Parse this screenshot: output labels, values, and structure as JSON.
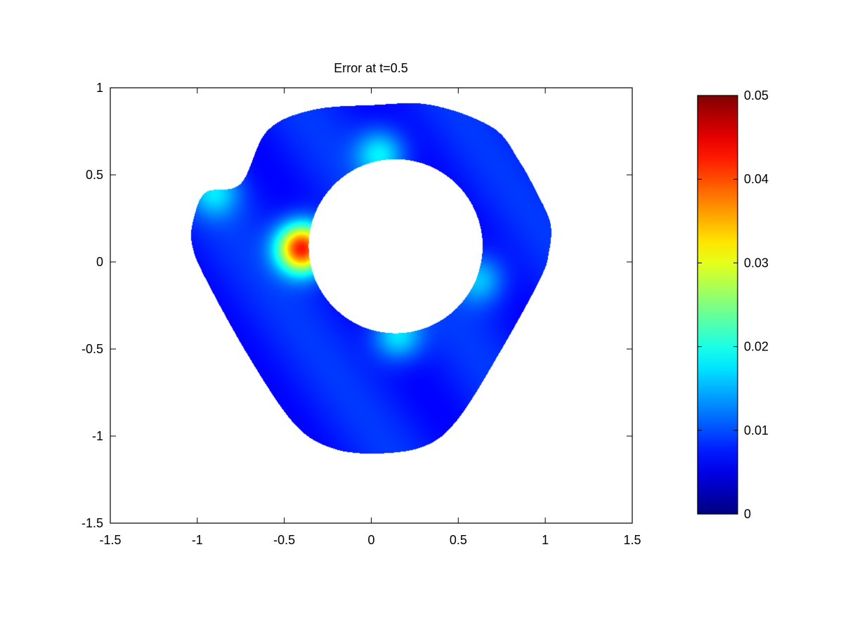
{
  "chart_data": {
    "type": "heatmap",
    "title": "Error at t=0.5",
    "xlabel": "",
    "ylabel": "",
    "xlim": [
      -1.5,
      1.5
    ],
    "ylim": [
      -1.5,
      1
    ],
    "x_ticks": [
      -1.5,
      -1,
      -0.5,
      0,
      0.5,
      1,
      1.5
    ],
    "x_tick_labels": [
      "-1.5",
      "-1",
      "-0.5",
      "0",
      "0.5",
      "1",
      "1.5"
    ],
    "y_ticks": [
      1,
      0.5,
      0,
      -0.5,
      -1,
      -1.5
    ],
    "y_tick_labels": [
      "1",
      "0.5",
      "0",
      "-0.5",
      "-1",
      "-1.5"
    ],
    "colorbar": {
      "colormap": "jet",
      "range": [
        0,
        0.05
      ],
      "ticks": [
        0,
        0.01,
        0.02,
        0.03,
        0.04,
        0.05
      ],
      "tick_labels": [
        "0",
        "0.01",
        "0.02",
        "0.03",
        "0.04",
        "0.05"
      ]
    },
    "domain": {
      "shape": "rounded triangular annulus",
      "outer_boundary": [
        [
          -0.75,
          0.45
        ],
        [
          -0.6,
          0.75
        ],
        [
          -0.35,
          0.87
        ],
        [
          0,
          0.9
        ],
        [
          0.35,
          0.9
        ],
        [
          0.7,
          0.77
        ],
        [
          0.85,
          0.58
        ],
        [
          0.95,
          0.4
        ],
        [
          1.03,
          0.22
        ],
        [
          1.02,
          0.05
        ],
        [
          0.97,
          -0.1
        ],
        [
          0.75,
          -0.5
        ],
        [
          0.5,
          -0.9
        ],
        [
          0.3,
          -1.06
        ],
        [
          0,
          -1.1
        ],
        [
          -0.25,
          -1.06
        ],
        [
          -0.45,
          -0.92
        ],
        [
          -0.7,
          -0.55
        ],
        [
          -0.95,
          -0.1
        ],
        [
          -1.03,
          0.1
        ],
        [
          -1.02,
          0.25
        ],
        [
          -0.95,
          0.4
        ]
      ],
      "hole_center": [
        0.14,
        0.09
      ],
      "hole_radius": 0.5
    },
    "error_sources": [
      {
        "x": -0.4,
        "y": 0.08,
        "value": 0.045
      },
      {
        "x": 0.05,
        "y": 0.62,
        "value": 0.02
      },
      {
        "x": -0.9,
        "y": 0.4,
        "value": 0.018
      },
      {
        "x": 0.15,
        "y": -0.42,
        "value": 0.02
      },
      {
        "x": 0.62,
        "y": -0.1,
        "value": 0.018
      }
    ],
    "background_value": 0.009
  }
}
